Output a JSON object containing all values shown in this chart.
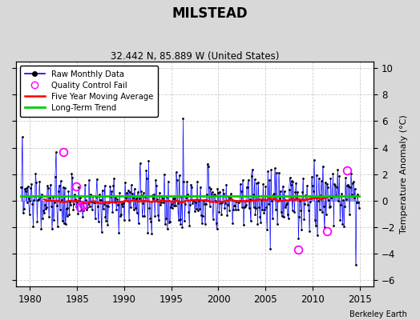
{
  "title": "MILSTEAD",
  "subtitle": "32.442 N, 85.889 W (United States)",
  "ylabel": "Temperature Anomaly (°C)",
  "credit": "Berkeley Earth",
  "xlim": [
    1978.5,
    2016.5
  ],
  "ylim": [
    -6.5,
    10.5
  ],
  "yticks": [
    -6,
    -4,
    -2,
    0,
    2,
    4,
    6,
    8,
    10
  ],
  "xticks": [
    1980,
    1985,
    1990,
    1995,
    2000,
    2005,
    2010,
    2015
  ],
  "raw_color": "#0000ff",
  "qc_color": "#ff00ff",
  "moving_avg_color": "#ff0000",
  "trend_color": "#00cc00",
  "bg_color": "#d8d8d8",
  "plot_bg_color": "#ffffff",
  "qc_points": [
    [
      1983.5,
      3.7
    ],
    [
      1984.9,
      1.1
    ],
    [
      1985.3,
      -0.5
    ],
    [
      1985.7,
      -0.3
    ],
    [
      2008.5,
      -3.7
    ],
    [
      2011.5,
      -2.3
    ],
    [
      2013.7,
      2.3
    ]
  ],
  "trend_value": 0.35,
  "seed": 137
}
